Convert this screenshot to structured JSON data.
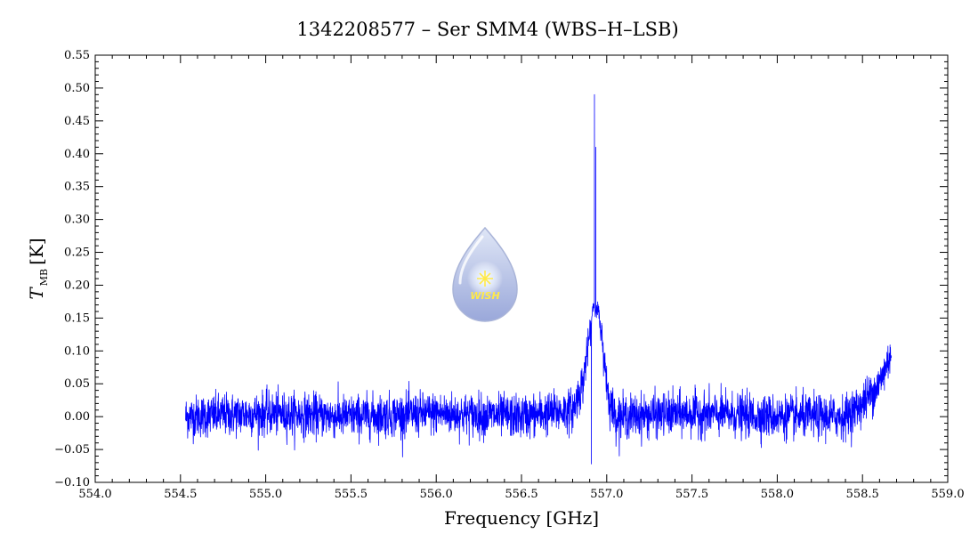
{
  "chart_data": {
    "type": "line",
    "title": "1342208577 – Ser SMM4 (WBS–H–LSB)",
    "xlabel": "Frequency [GHz]",
    "ylabel_main": "T",
    "ylabel_sub": "MB",
    "ylabel_unit": "[K]",
    "xlim": [
      554.0,
      559.0
    ],
    "ylim": [
      -0.1,
      0.55
    ],
    "x_ticks": [
      "554.0",
      "554.5",
      "555.0",
      "555.5",
      "556.0",
      "556.5",
      "557.0",
      "557.5",
      "558.0",
      "558.5",
      "559.0"
    ],
    "y_ticks": [
      "−0.10",
      "−0.05",
      "0.00",
      "0.05",
      "0.10",
      "0.15",
      "0.20",
      "0.25",
      "0.30",
      "0.35",
      "0.40",
      "0.45",
      "0.50",
      "0.55"
    ],
    "grid": false,
    "line_color": "#0000ff",
    "series": [
      {
        "x_range": [
          554.53,
          558.67
        ],
        "noise_rms": 0.016,
        "profile": [
          [
            554.53,
            0.0
          ],
          [
            555.0,
            0.005
          ],
          [
            555.5,
            0.0
          ],
          [
            556.0,
            0.005
          ],
          [
            556.5,
            0.0
          ],
          [
            556.8,
            0.01
          ],
          [
            556.86,
            0.05
          ],
          [
            556.89,
            0.11
          ],
          [
            556.91,
            0.14
          ],
          [
            556.92,
            0.17
          ],
          [
            556.95,
            0.16
          ],
          [
            556.98,
            0.1
          ],
          [
            557.01,
            0.03
          ],
          [
            557.05,
            0.0
          ],
          [
            557.5,
            0.005
          ],
          [
            558.0,
            0.0
          ],
          [
            558.4,
            0.0
          ],
          [
            558.5,
            0.02
          ],
          [
            558.6,
            0.05
          ],
          [
            558.67,
            0.1
          ]
        ],
        "spikes": [
          {
            "x": 556.928,
            "y": 0.49
          },
          {
            "x": 556.936,
            "y": 0.41
          },
          {
            "x": 556.92,
            "y": 0.16
          },
          {
            "x": 556.91,
            "y": -0.072
          }
        ]
      }
    ]
  },
  "logo": {
    "text": "WISH",
    "icon": "wish-droplet-logo-icon",
    "colors": {
      "top": "#dfe6f6",
      "bottom": "#9aa8da",
      "glow": "#ffffff",
      "star": "#ffe94a"
    }
  }
}
